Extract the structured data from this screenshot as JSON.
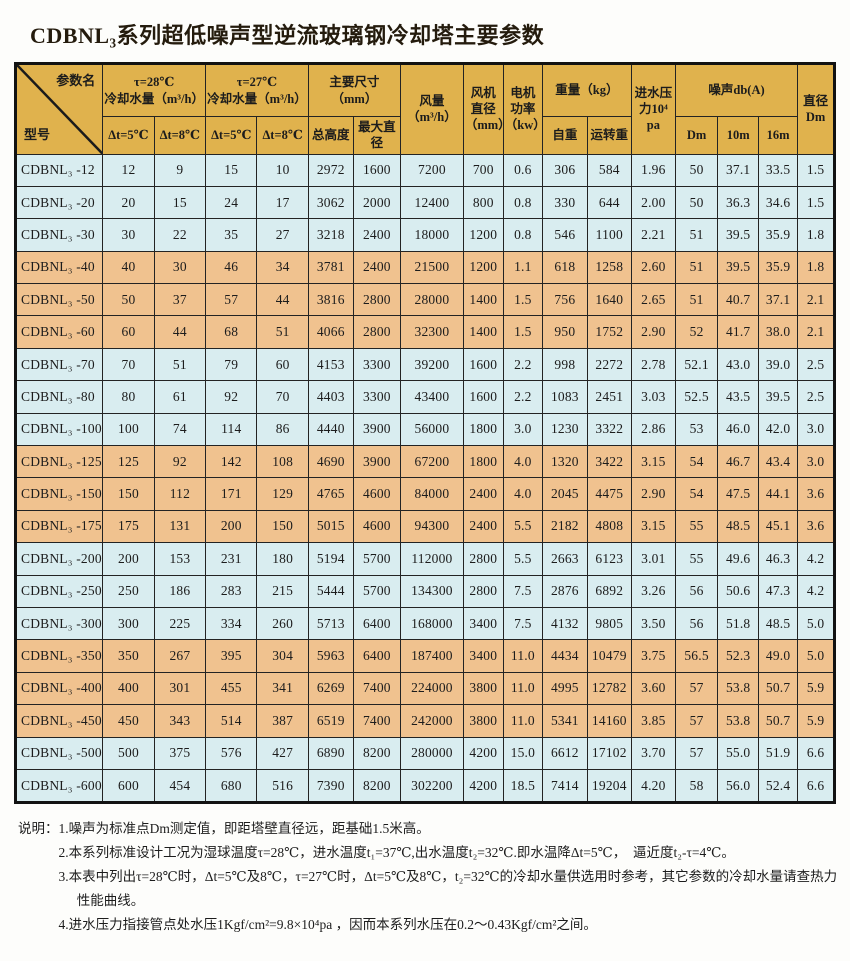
{
  "title": "CDBNL₃系列超低噪声型逆流玻璃钢冷却塔主要参数",
  "colors": {
    "header_bg": "#e0b24d",
    "row_blue": "#d9edf0",
    "row_tan": "#f0c28f",
    "border_dark": "#1b1b1b",
    "text_main": "#1c1c1c"
  },
  "table": {
    "corner": {
      "param": "参数名",
      "model": "型号"
    },
    "groups": [
      {
        "label": "τ=28℃\n冷却水量（m³/h）"
      },
      {
        "label": "τ=27℃\n冷却水量（m³/h）"
      },
      {
        "label": "主要尺寸（mm）"
      },
      {
        "label": "风量\n（m³/h）"
      },
      {
        "label": "风机直径\n（mm）"
      },
      {
        "label": "电机功率\n（kw）"
      },
      {
        "label": "重量（kg）"
      },
      {
        "label": "进水压力10⁴\npa"
      },
      {
        "label": "噪声db(A)"
      },
      {
        "label": "直径\nDm"
      }
    ],
    "subheaders": [
      "Δt=5℃",
      "Δt=8℃",
      "Δt=5℃",
      "Δt=8℃",
      "总高度",
      "最大直径",
      "自重",
      "运转重",
      "Dm",
      "10m",
      "16m"
    ],
    "rows": [
      {
        "model": "CDBNL₃ -12",
        "values": [
          "12",
          "9",
          "15",
          "10",
          "2972",
          "1600",
          "7200",
          "700",
          "0.6",
          "306",
          "584",
          "1.96",
          "50",
          "37.1",
          "33.5",
          "1.5"
        ]
      },
      {
        "model": "CDBNL₃ -20",
        "values": [
          "20",
          "15",
          "24",
          "17",
          "3062",
          "2000",
          "12400",
          "800",
          "0.8",
          "330",
          "644",
          "2.00",
          "50",
          "36.3",
          "34.6",
          "1.5"
        ]
      },
      {
        "model": "CDBNL₃ -30",
        "values": [
          "30",
          "22",
          "35",
          "27",
          "3218",
          "2400",
          "18000",
          "1200",
          "0.8",
          "546",
          "1100",
          "2.21",
          "51",
          "39.5",
          "35.9",
          "1.8"
        ]
      },
      {
        "model": "CDBNL₃ -40",
        "values": [
          "40",
          "30",
          "46",
          "34",
          "3781",
          "2400",
          "21500",
          "1200",
          "1.1",
          "618",
          "1258",
          "2.60",
          "51",
          "39.5",
          "35.9",
          "1.8"
        ]
      },
      {
        "model": "CDBNL₃ -50",
        "values": [
          "50",
          "37",
          "57",
          "44",
          "3816",
          "2800",
          "28000",
          "1400",
          "1.5",
          "756",
          "1640",
          "2.65",
          "51",
          "40.7",
          "37.1",
          "2.1"
        ]
      },
      {
        "model": "CDBNL₃ -60",
        "values": [
          "60",
          "44",
          "68",
          "51",
          "4066",
          "2800",
          "32300",
          "1400",
          "1.5",
          "950",
          "1752",
          "2.90",
          "52",
          "41.7",
          "38.0",
          "2.1"
        ]
      },
      {
        "model": "CDBNL₃ -70",
        "values": [
          "70",
          "51",
          "79",
          "60",
          "4153",
          "3300",
          "39200",
          "1600",
          "2.2",
          "998",
          "2272",
          "2.78",
          "52.1",
          "43.0",
          "39.0",
          "2.5"
        ]
      },
      {
        "model": "CDBNL₃ -80",
        "values": [
          "80",
          "61",
          "92",
          "70",
          "4403",
          "3300",
          "43400",
          "1600",
          "2.2",
          "1083",
          "2451",
          "3.03",
          "52.5",
          "43.5",
          "39.5",
          "2.5"
        ]
      },
      {
        "model": "CDBNL₃ -100",
        "values": [
          "100",
          "74",
          "114",
          "86",
          "4440",
          "3900",
          "56000",
          "1800",
          "3.0",
          "1230",
          "3322",
          "2.86",
          "53",
          "46.0",
          "42.0",
          "3.0"
        ]
      },
      {
        "model": "CDBNL₃ -125",
        "values": [
          "125",
          "92",
          "142",
          "108",
          "4690",
          "3900",
          "67200",
          "1800",
          "4.0",
          "1320",
          "3422",
          "3.15",
          "54",
          "46.7",
          "43.4",
          "3.0"
        ]
      },
      {
        "model": "CDBNL₃ -150",
        "values": [
          "150",
          "112",
          "171",
          "129",
          "4765",
          "4600",
          "84000",
          "2400",
          "4.0",
          "2045",
          "4475",
          "2.90",
          "54",
          "47.5",
          "44.1",
          "3.6"
        ]
      },
      {
        "model": "CDBNL₃ -175",
        "values": [
          "175",
          "131",
          "200",
          "150",
          "5015",
          "4600",
          "94300",
          "2400",
          "5.5",
          "2182",
          "4808",
          "3.15",
          "55",
          "48.5",
          "45.1",
          "3.6"
        ]
      },
      {
        "model": "CDBNL₃ -200",
        "values": [
          "200",
          "153",
          "231",
          "180",
          "5194",
          "5700",
          "112000",
          "2800",
          "5.5",
          "2663",
          "6123",
          "3.01",
          "55",
          "49.6",
          "46.3",
          "4.2"
        ]
      },
      {
        "model": "CDBNL₃ -250",
        "values": [
          "250",
          "186",
          "283",
          "215",
          "5444",
          "5700",
          "134300",
          "2800",
          "7.5",
          "2876",
          "6892",
          "3.26",
          "56",
          "50.6",
          "47.3",
          "4.2"
        ]
      },
      {
        "model": "CDBNL₃ -300",
        "values": [
          "300",
          "225",
          "334",
          "260",
          "5713",
          "6400",
          "168000",
          "3400",
          "7.5",
          "4132",
          "9805",
          "3.50",
          "56",
          "51.8",
          "48.5",
          "5.0"
        ]
      },
      {
        "model": "CDBNL₃ -350",
        "values": [
          "350",
          "267",
          "395",
          "304",
          "5963",
          "6400",
          "187400",
          "3400",
          "11.0",
          "4434",
          "10479",
          "3.75",
          "56.5",
          "52.3",
          "49.0",
          "5.0"
        ]
      },
      {
        "model": "CDBNL₃ -400",
        "values": [
          "400",
          "301",
          "455",
          "341",
          "6269",
          "7400",
          "224000",
          "3800",
          "11.0",
          "4995",
          "12782",
          "3.60",
          "57",
          "53.8",
          "50.7",
          "5.9"
        ]
      },
      {
        "model": "CDBNL₃ -450",
        "values": [
          "450",
          "343",
          "514",
          "387",
          "6519",
          "7400",
          "242000",
          "3800",
          "11.0",
          "5341",
          "14160",
          "3.85",
          "57",
          "53.8",
          "50.7",
          "5.9"
        ]
      },
      {
        "model": "CDBNL₃ -500",
        "values": [
          "500",
          "375",
          "576",
          "427",
          "6890",
          "8200",
          "280000",
          "4200",
          "15.0",
          "6612",
          "17102",
          "3.70",
          "57",
          "55.0",
          "51.9",
          "6.6"
        ]
      },
      {
        "model": "CDBNL₃ -600",
        "values": [
          "600",
          "454",
          "680",
          "516",
          "7390",
          "8200",
          "302200",
          "4200",
          "18.5",
          "7414",
          "19204",
          "4.20",
          "58",
          "56.0",
          "52.4",
          "6.6"
        ]
      }
    ]
  },
  "notes": {
    "label": "说明：",
    "items": [
      "1.噪声为标准点Dm测定值，即距塔壁直径远，距基础1.5米高。",
      "2.本系列标准设计工况为湿球温度τ=28℃，进水温度t₁=37℃,出水温度t₂=32℃.即水温降Δt=5℃，　逼近度t₂-τ=4℃。",
      "3.本表中列出τ=28℃时，Δt=5℃及8℃，τ=27℃时，Δt=5℃及8℃，t₂=32℃的冷却水量供选用时参考，其它参数的冷却水量请查热力性能曲线。",
      "4.进水压力指接管点处水压1Kgf/cm²=9.8×10⁴pa ，因而本系列水压在0.2～0.43Kgf/cm²之间。"
    ]
  }
}
